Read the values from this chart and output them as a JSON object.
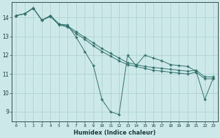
{
  "xlabel": "Humidex (Indice chaleur)",
  "bg_color": "#cce8e8",
  "grid_color": "#aacccc",
  "line_color": "#2d6e6a",
  "ylim": [
    8.5,
    14.8
  ],
  "xlim": [
    -0.5,
    23.5
  ],
  "yticks": [
    9,
    10,
    11,
    12,
    13,
    14
  ],
  "xticks": [
    0,
    1,
    2,
    3,
    4,
    5,
    6,
    7,
    8,
    9,
    10,
    11,
    12,
    13,
    14,
    15,
    16,
    17,
    18,
    19,
    20,
    21,
    22,
    23
  ],
  "series1": [
    [
      0,
      14.1
    ],
    [
      1,
      14.2
    ],
    [
      2,
      14.5
    ],
    [
      3,
      13.85
    ],
    [
      4,
      14.1
    ],
    [
      5,
      13.65
    ],
    [
      6,
      13.6
    ],
    [
      7,
      12.95
    ],
    [
      8,
      12.2
    ],
    [
      9,
      11.45
    ],
    [
      10,
      9.65
    ],
    [
      11,
      9.0
    ],
    [
      12,
      8.85
    ],
    [
      13,
      12.0
    ],
    [
      14,
      11.45
    ],
    [
      15,
      12.0
    ],
    [
      16,
      11.85
    ],
    [
      17,
      11.7
    ],
    [
      18,
      11.5
    ],
    [
      19,
      11.45
    ],
    [
      20,
      11.4
    ],
    [
      21,
      11.15
    ],
    [
      22,
      9.65
    ],
    [
      23,
      10.8
    ]
  ],
  "series2": [
    [
      0,
      14.1
    ],
    [
      1,
      14.2
    ],
    [
      2,
      14.5
    ],
    [
      3,
      13.85
    ],
    [
      4,
      14.05
    ],
    [
      5,
      13.6
    ],
    [
      6,
      13.5
    ],
    [
      7,
      13.15
    ],
    [
      8,
      12.85
    ],
    [
      9,
      12.5
    ],
    [
      10,
      12.2
    ],
    [
      11,
      11.95
    ],
    [
      12,
      11.7
    ],
    [
      13,
      11.5
    ],
    [
      14,
      11.4
    ],
    [
      15,
      11.3
    ],
    [
      16,
      11.2
    ],
    [
      17,
      11.15
    ],
    [
      18,
      11.1
    ],
    [
      19,
      11.05
    ],
    [
      20,
      11.0
    ],
    [
      21,
      11.1
    ],
    [
      22,
      10.75
    ],
    [
      23,
      10.75
    ]
  ],
  "series3": [
    [
      0,
      14.1
    ],
    [
      1,
      14.2
    ],
    [
      2,
      14.5
    ],
    [
      3,
      13.85
    ],
    [
      4,
      14.1
    ],
    [
      5,
      13.65
    ],
    [
      6,
      13.55
    ],
    [
      7,
      13.25
    ],
    [
      8,
      12.95
    ],
    [
      9,
      12.65
    ],
    [
      10,
      12.35
    ],
    [
      11,
      12.1
    ],
    [
      12,
      11.85
    ],
    [
      13,
      11.6
    ],
    [
      14,
      11.5
    ],
    [
      15,
      11.4
    ],
    [
      16,
      11.35
    ],
    [
      17,
      11.3
    ],
    [
      18,
      11.25
    ],
    [
      19,
      11.2
    ],
    [
      20,
      11.15
    ],
    [
      21,
      11.2
    ],
    [
      22,
      10.85
    ],
    [
      23,
      10.85
    ]
  ]
}
